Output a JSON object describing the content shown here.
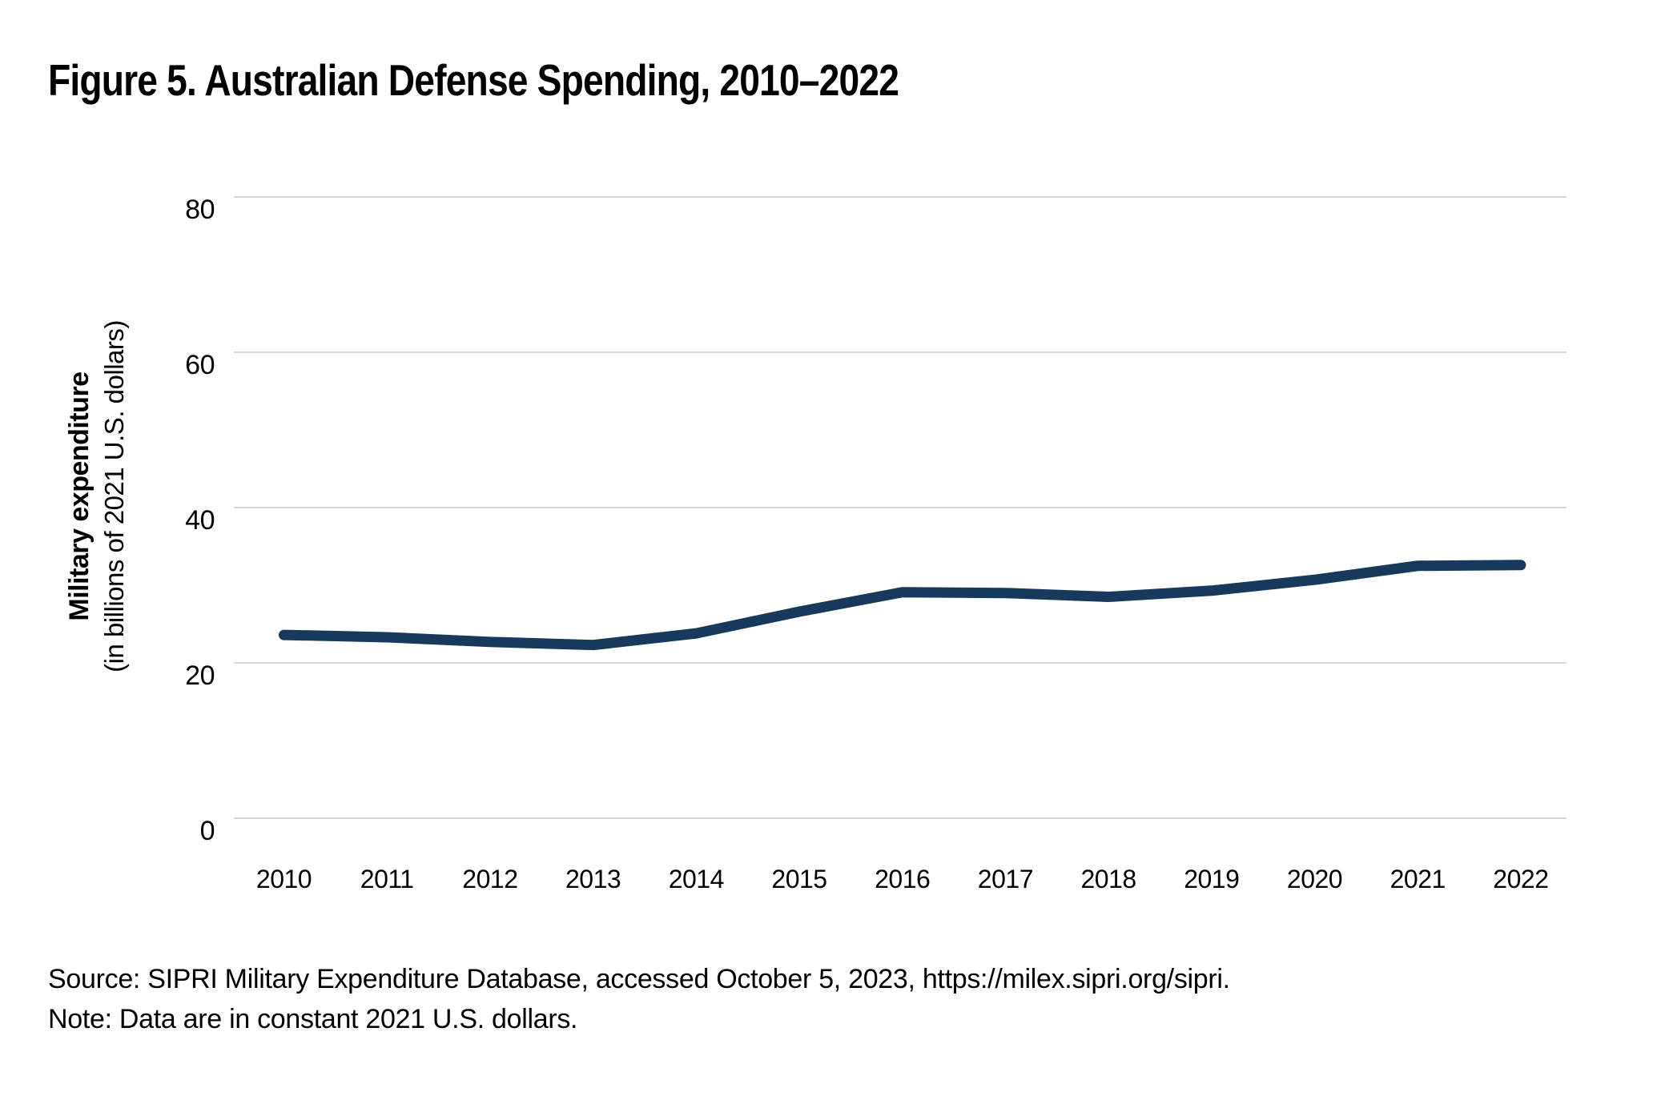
{
  "title": "Figure 5. Australian Defense Spending, 2010–2022",
  "y_axis": {
    "label": "Military expenditure",
    "sublabel": "(in billions of 2021 U.S. dollars)",
    "ticks": [
      0,
      20,
      40,
      60,
      80
    ]
  },
  "x_axis": {
    "years": [
      "2010",
      "2011",
      "2012",
      "2013",
      "2014",
      "2015",
      "2016",
      "2017",
      "2018",
      "2019",
      "2020",
      "2021",
      "2022"
    ]
  },
  "chart_data": {
    "type": "line",
    "title": "Figure 5. Australian Defense Spending, 2010–2022",
    "xlabel": "",
    "ylabel": "Military expenditure (in billions of 2021 U.S. dollars)",
    "x": [
      2010,
      2011,
      2012,
      2013,
      2014,
      2015,
      2016,
      2017,
      2018,
      2019,
      2020,
      2021,
      2022
    ],
    "series": [
      {
        "name": "Australian military expenditure",
        "values": [
          23.6,
          23.3,
          22.7,
          22.3,
          23.8,
          26.6,
          29.1,
          29.0,
          28.5,
          29.3,
          30.7,
          32.5,
          32.6
        ]
      }
    ],
    "ylim": [
      0,
      80
    ],
    "yticks": [
      0,
      20,
      40,
      60,
      80
    ],
    "grid": "horizontal-only",
    "legend": "none"
  },
  "footer": {
    "source": "Source: SIPRI Military Expenditure Database, accessed October 5, 2023, https://milex.sipri.org/sipri.",
    "note": "Note: Data are in constant 2021 U.S. dollars."
  },
  "colors": {
    "line": "#173a5c",
    "gridline": "#d6d6d6",
    "text": "#000000",
    "background": "#ffffff"
  }
}
